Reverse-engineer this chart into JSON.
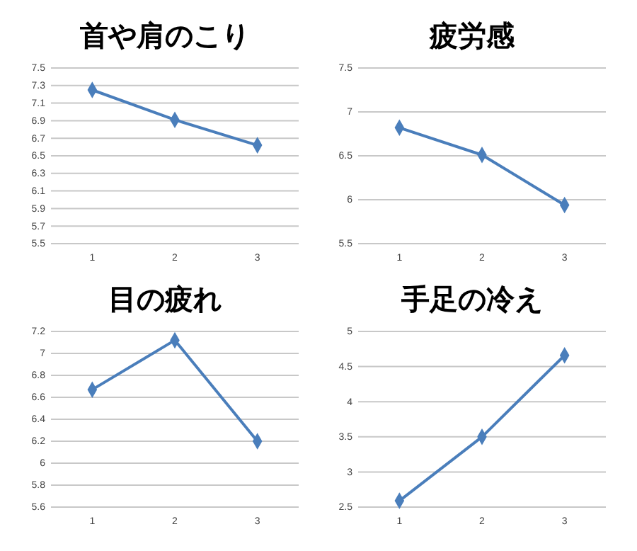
{
  "chart_data": [
    {
      "type": "line",
      "title": "首や肩のこり",
      "categories": [
        "1",
        "2",
        "3"
      ],
      "series": [
        {
          "color": "#4a7ebb",
          "values": [
            7.25,
            6.91,
            6.62
          ]
        }
      ],
      "ylim": [
        5.5,
        7.5
      ],
      "yticks": [
        5.5,
        5.7,
        5.9,
        6.1,
        6.3,
        6.5,
        6.7,
        6.9,
        7.1,
        7.3,
        7.5
      ],
      "grid": "y",
      "marker": "diamond"
    },
    {
      "type": "line",
      "title": "疲労感",
      "categories": [
        "1",
        "2",
        "3"
      ],
      "series": [
        {
          "color": "#4a7ebb",
          "values": [
            6.82,
            6.51,
            5.94
          ]
        }
      ],
      "ylim": [
        5.5,
        7.5
      ],
      "yticks": [
        5.5,
        6,
        6.5,
        7,
        7.5
      ],
      "grid": "y",
      "marker": "diamond"
    },
    {
      "type": "line",
      "title": "目の疲れ",
      "categories": [
        "1",
        "2",
        "3"
      ],
      "series": [
        {
          "color": "#4a7ebb",
          "values": [
            6.67,
            7.12,
            6.2
          ]
        }
      ],
      "ylim": [
        5.6,
        7.2
      ],
      "yticks": [
        5.6,
        5.8,
        6,
        6.2,
        6.4,
        6.6,
        6.8,
        7,
        7.2
      ],
      "grid": "y",
      "marker": "diamond"
    },
    {
      "type": "line",
      "title": "手足の冷え",
      "categories": [
        "1",
        "2",
        "3"
      ],
      "series": [
        {
          "color": "#4a7ebb",
          "values": [
            2.59,
            3.5,
            4.66
          ]
        }
      ],
      "ylim": [
        2.5,
        5
      ],
      "yticks": [
        2.5,
        3,
        3.5,
        4,
        4.5,
        5
      ],
      "grid": "y",
      "marker": "diamond"
    }
  ]
}
